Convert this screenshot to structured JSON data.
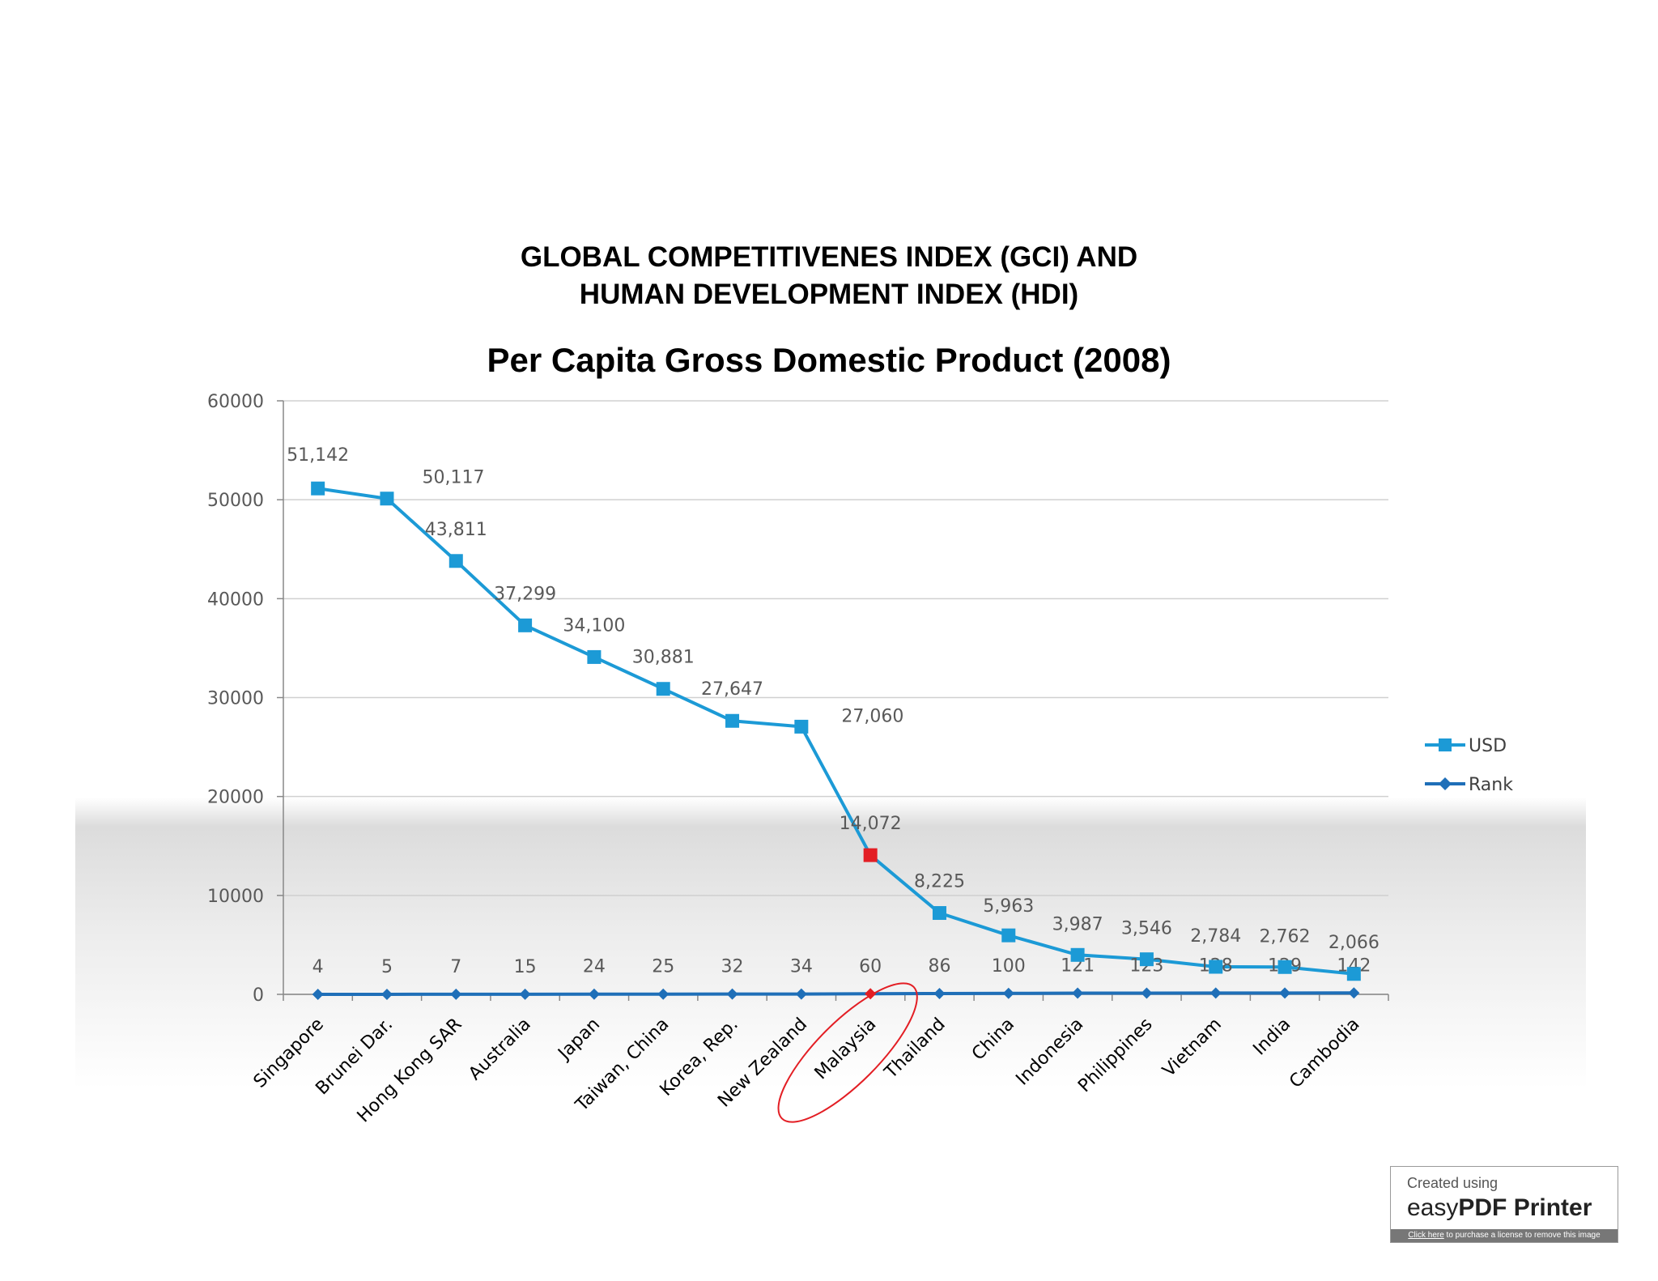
{
  "title_line1": "GLOBAL COMPETITIVENES INDEX (GCI) AND",
  "title_line2": "HUMAN DEVELOPMENT INDEX (HDI)",
  "chart_data": {
    "type": "line",
    "title": "Per Capita Gross Domestic Product (2008)",
    "categories": [
      "Singapore",
      "Brunei Dar.",
      "Hong Kong SAR",
      "Australia",
      "Japan",
      "Taiwan, China",
      "Korea, Rep.",
      "New Zealand",
      "Malaysia",
      "Thailand",
      "China",
      "Indonesia",
      "Philippines",
      "Vietnam",
      "India",
      "Cambodia"
    ],
    "series": [
      {
        "name": "USD",
        "values": [
          51142,
          50117,
          43811,
          37299,
          34100,
          30881,
          27647,
          27060,
          14072,
          8225,
          5963,
          3987,
          3546,
          2784,
          2762,
          2066
        ],
        "labels": [
          "51,142",
          "50,117",
          "43,811",
          "37,299",
          "34,100",
          "30,881",
          "27,647",
          "27,060",
          "14,072",
          "8,225",
          "5,963",
          "3,987",
          "3,546",
          "2,784",
          "2,762",
          "2,066"
        ],
        "color": "#1C9AD6",
        "marker": "square"
      },
      {
        "name": "Rank",
        "values": [
          4,
          5,
          7,
          15,
          24,
          25,
          32,
          34,
          60,
          86,
          100,
          121,
          123,
          128,
          129,
          142
        ],
        "color": "#1F6FB8",
        "marker": "diamond"
      }
    ],
    "highlight": {
      "category": "Malaysia",
      "color": "#E31E24"
    },
    "y_ticks": [
      "0",
      "10000",
      "20000",
      "30000",
      "40000",
      "50000",
      "60000"
    ],
    "ylim": [
      0,
      60000
    ],
    "grid": true,
    "legend_position": "right"
  },
  "watermark": {
    "line1": "Created using",
    "brand_light": "easy",
    "brand_bold": "PDF Printer",
    "footer_link": "Click here",
    "footer_text": " to purchase a license to remove this image"
  }
}
